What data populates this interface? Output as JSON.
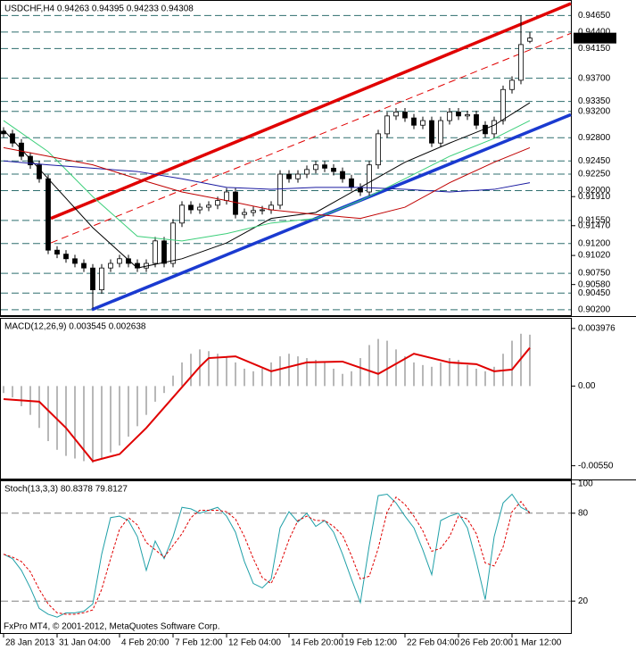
{
  "chart_data": [
    {
      "type": "candlestick",
      "title": "USDCHF,H4 0.94263 0.94395 0.94233 0.94308",
      "open": [
        0.929,
        0.9286,
        0.9272,
        0.9252,
        0.9239,
        0.9218,
        0.911,
        0.9104,
        0.9097,
        0.909,
        0.9083,
        0.905,
        0.9083,
        0.909,
        0.9097,
        0.909,
        0.9083,
        0.909,
        0.9124,
        0.909,
        0.9151,
        0.9178,
        0.9171,
        0.9175,
        0.9178,
        0.9185,
        0.9198,
        0.9164,
        0.9167,
        0.917,
        0.9171,
        0.9178,
        0.9225,
        0.9218,
        0.9225,
        0.9232,
        0.9239,
        0.9234,
        0.9229,
        0.9218,
        0.9205,
        0.9198,
        0.9239,
        0.9286,
        0.9313,
        0.9319,
        0.931,
        0.9299,
        0.9306,
        0.9272,
        0.9306,
        0.9319,
        0.9313,
        0.9315,
        0.9299,
        0.9286,
        0.9306,
        0.9353,
        0.9367,
        0.9426
      ],
      "high": [
        0.9296,
        0.9292,
        0.9278,
        0.9258,
        0.9245,
        0.9224,
        0.9116,
        0.911,
        0.9103,
        0.9096,
        0.9089,
        0.9089,
        0.9096,
        0.9103,
        0.9103,
        0.9096,
        0.9096,
        0.913,
        0.913,
        0.9157,
        0.9184,
        0.9184,
        0.9181,
        0.9184,
        0.9191,
        0.9204,
        0.9204,
        0.9173,
        0.9176,
        0.9177,
        0.9184,
        0.9231,
        0.9231,
        0.9231,
        0.9238,
        0.9245,
        0.9245,
        0.924,
        0.9235,
        0.9224,
        0.9211,
        0.9245,
        0.9292,
        0.9319,
        0.9325,
        0.9325,
        0.9316,
        0.9312,
        0.9312,
        0.9312,
        0.9325,
        0.9325,
        0.9321,
        0.9321,
        0.9305,
        0.9312,
        0.9359,
        0.9373,
        0.9465,
        0.944
      ],
      "low": [
        0.928,
        0.9266,
        0.9246,
        0.9233,
        0.9212,
        0.9104,
        0.9098,
        0.9091,
        0.9084,
        0.9077,
        0.9022,
        0.9044,
        0.9077,
        0.9084,
        0.9084,
        0.9077,
        0.9077,
        0.9084,
        0.9084,
        0.9084,
        0.9145,
        0.9165,
        0.9165,
        0.9169,
        0.9172,
        0.9179,
        0.9158,
        0.9158,
        0.9161,
        0.9164,
        0.9165,
        0.9172,
        0.9212,
        0.9212,
        0.9219,
        0.9226,
        0.9228,
        0.9223,
        0.9212,
        0.9199,
        0.9192,
        0.9192,
        0.9233,
        0.928,
        0.9307,
        0.9304,
        0.9293,
        0.9293,
        0.9266,
        0.9266,
        0.93,
        0.9307,
        0.9307,
        0.9293,
        0.928,
        0.928,
        0.93,
        0.9347,
        0.9361,
        0.9423
      ],
      "close": [
        0.9286,
        0.9272,
        0.9252,
        0.9239,
        0.9218,
        0.911,
        0.9104,
        0.9097,
        0.909,
        0.9083,
        0.905,
        0.9083,
        0.909,
        0.9097,
        0.909,
        0.9083,
        0.909,
        0.9124,
        0.909,
        0.9151,
        0.9178,
        0.9171,
        0.9175,
        0.9178,
        0.9185,
        0.9198,
        0.9164,
        0.9167,
        0.917,
        0.9171,
        0.9178,
        0.9225,
        0.9218,
        0.9225,
        0.9232,
        0.9239,
        0.9234,
        0.9229,
        0.9218,
        0.9205,
        0.9198,
        0.9239,
        0.9286,
        0.9313,
        0.9319,
        0.931,
        0.9299,
        0.9306,
        0.9272,
        0.9306,
        0.9319,
        0.9313,
        0.9315,
        0.9299,
        0.9286,
        0.9306,
        0.9353,
        0.9367,
        0.9421,
        0.94308
      ],
      "up_color": "#ffffff",
      "down_color": "#000000",
      "ylim": [
        0.9013,
        0.9483
      ],
      "yticks": [
        {
          "value": 0.9191,
          "label": "0.91910"
        },
        {
          "value": 0.9147,
          "label": "0.91470"
        },
        {
          "value": 0.9102,
          "label": "0.91020"
        },
        {
          "value": 0.9058,
          "label": "0.90580"
        }
      ],
      "levels": [
        {
          "value": 0.9465,
          "label": "0.94650"
        },
        {
          "value": 0.944,
          "label": "0.94400"
        },
        {
          "value": 0.9415,
          "label": "0.94150"
        },
        {
          "value": 0.937,
          "label": "0.93700"
        },
        {
          "value": 0.9335,
          "label": "0.93350"
        },
        {
          "value": 0.932,
          "label": "0.93200"
        },
        {
          "value": 0.928,
          "label": "0.92800"
        },
        {
          "value": 0.9245,
          "label": "0.92450"
        },
        {
          "value": 0.9225,
          "label": "0.92250"
        },
        {
          "value": 0.92,
          "label": "0.92000"
        },
        {
          "value": 0.9155,
          "label": "0.91550"
        },
        {
          "value": 0.912,
          "label": "0.91200"
        },
        {
          "value": 0.9075,
          "label": "0.90750"
        },
        {
          "value": 0.9045,
          "label": "0.90450"
        },
        {
          "value": 0.902,
          "label": "0.90200"
        }
      ],
      "level_color": "#2f6f6f",
      "last_price": {
        "value": 0.94308,
        "label": "0.94308"
      },
      "trendlines": [
        {
          "color": "#e00000",
          "points": [
            [
              5.3,
              0.9158
            ],
            [
              63.6,
              0.9483
            ]
          ]
        },
        {
          "color": "#1a3ad0",
          "points": [
            [
              9.9,
              0.902
            ],
            [
              63.6,
              0.9315
            ]
          ]
        },
        {
          "color": "#e00000",
          "dashed": true,
          "points": [
            [
              5.3,
              0.9121
            ],
            [
              63.6,
              0.9438
            ]
          ]
        }
      ],
      "series": [
        {
          "color": "#000000",
          "x": [
            0,
            5,
            10,
            15,
            20,
            25,
            30,
            35,
            40,
            45,
            50,
            55,
            59
          ],
          "values": [
            0.9292,
            0.9218,
            0.9144,
            0.9083,
            0.9097,
            0.9121,
            0.9158,
            0.9167,
            0.9205,
            0.9243,
            0.9272,
            0.9299,
            0.9333
          ]
        },
        {
          "color": "#3ccf7a",
          "x": [
            0,
            5,
            10,
            15,
            20,
            25,
            30,
            35,
            40,
            45,
            50,
            55,
            59
          ],
          "values": [
            0.9306,
            0.9259,
            0.9191,
            0.9131,
            0.9124,
            0.9135,
            0.9151,
            0.9158,
            0.9185,
            0.9218,
            0.9252,
            0.9279,
            0.9306
          ]
        },
        {
          "color": "#1a1aa0",
          "x": [
            0,
            5,
            10,
            15,
            20,
            25,
            30,
            35,
            40,
            45,
            50,
            55,
            59
          ],
          "values": [
            0.9245,
            0.9239,
            0.9234,
            0.9229,
            0.9218,
            0.9205,
            0.9202,
            0.9205,
            0.9205,
            0.9202,
            0.9198,
            0.9202,
            0.9212
          ]
        },
        {
          "color": "#c00000",
          "x": [
            0,
            5,
            10,
            15,
            20,
            25,
            30,
            35,
            40,
            45,
            50,
            55,
            59
          ],
          "values": [
            0.9265,
            0.9252,
            0.9239,
            0.9218,
            0.9198,
            0.9185,
            0.9171,
            0.9164,
            0.9158,
            0.9175,
            0.9212,
            0.9243,
            0.9265
          ]
        }
      ]
    },
    {
      "type": "bar",
      "title": "MACD(12,26,9) 0.003545 0.002638",
      "values": [
        -0.00048,
        -0.00078,
        -0.00139,
        -0.00199,
        -0.00289,
        -0.0038,
        -0.0044,
        -0.00482,
        -0.005,
        -0.00518,
        -0.0053,
        -0.005,
        -0.00458,
        -0.0041,
        -0.00349,
        -0.00277,
        -0.00199,
        -0.00108,
        -0.00048,
        0.00072,
        0.00163,
        0.00223,
        0.00253,
        0.00241,
        0.00223,
        0.00205,
        0.00163,
        0.0012,
        0.00102,
        0.0012,
        0.00163,
        0.00205,
        0.00223,
        0.00205,
        0.00193,
        0.00181,
        0.00163,
        0.0012,
        0.00084,
        0.00102,
        0.00193,
        0.00283,
        0.00325,
        0.00313,
        0.00253,
        0.00205,
        0.00163,
        0.00145,
        0.00133,
        0.00163,
        0.00193,
        0.00181,
        0.00145,
        0.0012,
        0.00102,
        0.00133,
        0.00223,
        0.00313,
        0.00361,
        0.003545
      ],
      "color": "#a0a0a0",
      "ylim": [
        -0.0062,
        0.00446
      ],
      "yticks": [
        0.003976,
        {
          "value": 0,
          "label": "0.00"
        },
        {
          "value": -0.0055,
          "label": "-0.00550"
        }
      ],
      "series": [
        {
          "color": "#e00000",
          "x": [
            0,
            4,
            7,
            10,
            13,
            16,
            19,
            22,
            23,
            26,
            30,
            34,
            38,
            42,
            46,
            50,
            53,
            55,
            57,
            59
          ],
          "values": [
            -0.0009,
            -0.00108,
            -0.00289,
            -0.00518,
            -0.0047,
            -0.00289,
            -0.00078,
            0.00133,
            0.00193,
            0.00205,
            0.00102,
            0.00163,
            0.00169,
            0.00084,
            0.00223,
            0.00163,
            0.00151,
            0.00102,
            0.00114,
            0.002638
          ]
        }
      ]
    },
    {
      "type": "line",
      "title": "Stoch(13,3,3) 80.8378 79.8127",
      "ylim": [
        0,
        100
      ],
      "yticks": [
        100,
        80,
        20
      ],
      "levels": [
        80,
        20
      ],
      "level_color": "#808080",
      "series": [
        {
          "color": "#20a0a8",
          "values": [
            52,
            49,
            41,
            29,
            15,
            11,
            9,
            12,
            12,
            13,
            18,
            52,
            77,
            78,
            75,
            64,
            41,
            61,
            49,
            64,
            84,
            83,
            80,
            82,
            84,
            78,
            67,
            47,
            32,
            29,
            35,
            70,
            81,
            74,
            80,
            71,
            75,
            67,
            52,
            35,
            19,
            58,
            92,
            93,
            87,
            78,
            70,
            55,
            38,
            75,
            78,
            80,
            70,
            47,
            21,
            64,
            87,
            93,
            84,
            80.8378
          ]
        },
        {
          "color": "#e00000",
          "dashed": true,
          "values": [
            52,
            50,
            47,
            40,
            28,
            18,
            12,
            11,
            11,
            12,
            14,
            28,
            49,
            69,
            77,
            72,
            60,
            55,
            50,
            58,
            66,
            77,
            82,
            82,
            82,
            81,
            76,
            64,
            49,
            36,
            32,
            45,
            62,
            75,
            78,
            75,
            75,
            71,
            65,
            51,
            35,
            37,
            56,
            81,
            91,
            86,
            78,
            68,
            54,
            56,
            64,
            78,
            76,
            66,
            46,
            44,
            57,
            81,
            88,
            79.8127
          ]
        }
      ],
      "xticks": [
        {
          "value": 0,
          "label": "28 Jan 2013"
        },
        {
          "value": 6,
          "label": "31 Jan 04:00"
        },
        {
          "value": 13,
          "label": "4 Feb 20:00"
        },
        {
          "value": 19,
          "label": "7 Feb 12:00"
        },
        {
          "value": 25,
          "label": "12 Feb 04:00"
        },
        {
          "value": 32,
          "label": "14 Feb 20:00"
        },
        {
          "value": 38,
          "label": "19 Feb 12:00"
        },
        {
          "value": 45,
          "label": "22 Feb 04:00"
        },
        {
          "value": 51,
          "label": "26 Feb 20:00"
        },
        {
          "value": 57,
          "label": "1 Mar 12:00"
        }
      ],
      "annotation": "FxPro MT4, © 2001-2012, MetaQuotes Software Corp."
    }
  ]
}
